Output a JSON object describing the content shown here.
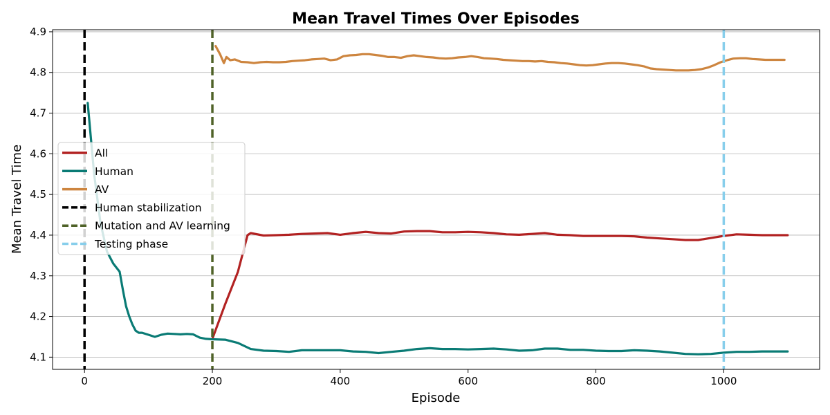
{
  "chart_data": {
    "type": "line",
    "title": "Mean Travel Times Over Episodes",
    "xlabel": "Episode",
    "ylabel": "Mean Travel Time",
    "xlim": [
      -50,
      1150
    ],
    "ylim": [
      4.07,
      4.905
    ],
    "xticks": [
      0,
      200,
      400,
      600,
      800,
      1000
    ],
    "yticks": [
      4.1,
      4.2,
      4.3,
      4.4,
      4.5,
      4.6,
      4.7,
      4.8,
      4.9
    ],
    "grid": "horizontal",
    "legend_position": "center-left",
    "series": [
      {
        "name": "All",
        "color": "#b22222",
        "x": [
          200,
          220,
          240,
          255,
          260,
          280,
          300,
          320,
          340,
          360,
          380,
          400,
          420,
          440,
          460,
          480,
          500,
          520,
          540,
          560,
          580,
          600,
          620,
          640,
          660,
          680,
          700,
          720,
          740,
          760,
          780,
          800,
          820,
          840,
          860,
          880,
          900,
          920,
          940,
          960,
          980,
          1000,
          1020,
          1040,
          1060,
          1080,
          1100
        ],
        "values": [
          4.145,
          4.23,
          4.31,
          4.4,
          4.405,
          4.399,
          4.4,
          4.401,
          4.403,
          4.404,
          4.405,
          4.401,
          4.405,
          4.408,
          4.405,
          4.404,
          4.409,
          4.41,
          4.41,
          4.407,
          4.407,
          4.408,
          4.407,
          4.405,
          4.402,
          4.401,
          4.403,
          4.405,
          4.401,
          4.4,
          4.398,
          4.398,
          4.398,
          4.398,
          4.397,
          4.394,
          4.392,
          4.39,
          4.388,
          4.388,
          4.393,
          4.398,
          4.402,
          4.401,
          4.4,
          4.4,
          4.4
        ]
      },
      {
        "name": "Human",
        "color": "#0a7b75",
        "x": [
          5,
          15,
          25,
          35,
          45,
          55,
          60,
          65,
          70,
          75,
          80,
          85,
          90,
          100,
          110,
          120,
          130,
          140,
          150,
          160,
          170,
          180,
          190,
          200,
          220,
          240,
          260,
          280,
          300,
          320,
          340,
          360,
          380,
          400,
          420,
          440,
          460,
          480,
          500,
          520,
          540,
          560,
          580,
          600,
          620,
          640,
          660,
          680,
          700,
          720,
          740,
          760,
          780,
          800,
          820,
          840,
          860,
          880,
          900,
          920,
          940,
          960,
          980,
          1000,
          1020,
          1040,
          1060,
          1080,
          1100
        ],
        "values": [
          4.725,
          4.55,
          4.43,
          4.36,
          4.33,
          4.31,
          4.265,
          4.225,
          4.2,
          4.18,
          4.165,
          4.16,
          4.16,
          4.155,
          4.15,
          4.155,
          4.158,
          4.157,
          4.156,
          4.157,
          4.156,
          4.148,
          4.145,
          4.144,
          4.143,
          4.135,
          4.12,
          4.116,
          4.115,
          4.113,
          4.117,
          4.117,
          4.117,
          4.117,
          4.114,
          4.113,
          4.11,
          4.113,
          4.116,
          4.12,
          4.122,
          4.12,
          4.12,
          4.119,
          4.12,
          4.121,
          4.119,
          4.116,
          4.117,
          4.121,
          4.121,
          4.118,
          4.118,
          4.116,
          4.115,
          4.115,
          4.117,
          4.116,
          4.114,
          4.111,
          4.108,
          4.107,
          4.108,
          4.111,
          4.113,
          4.113,
          4.114,
          4.114,
          4.114
        ]
      },
      {
        "name": "AV",
        "color": "#cd853f",
        "x": [
          205,
          212,
          218,
          222,
          228,
          235,
          245,
          255,
          265,
          275,
          285,
          295,
          305,
          315,
          325,
          335,
          345,
          355,
          365,
          375,
          385,
          395,
          405,
          415,
          425,
          435,
          445,
          455,
          465,
          475,
          485,
          495,
          505,
          515,
          525,
          535,
          545,
          555,
          565,
          575,
          585,
          595,
          605,
          615,
          625,
          635,
          645,
          655,
          665,
          675,
          685,
          695,
          705,
          715,
          725,
          735,
          745,
          755,
          765,
          775,
          785,
          795,
          805,
          815,
          825,
          835,
          845,
          855,
          865,
          875,
          885,
          895,
          905,
          915,
          925,
          935,
          945,
          955,
          965,
          975,
          985,
          995,
          1005,
          1015,
          1025,
          1035,
          1045,
          1055,
          1065,
          1075,
          1085,
          1095
        ],
        "values": [
          4.865,
          4.845,
          4.823,
          4.838,
          4.83,
          4.832,
          4.826,
          4.825,
          4.823,
          4.825,
          4.826,
          4.825,
          4.825,
          4.826,
          4.828,
          4.829,
          4.83,
          4.832,
          4.833,
          4.834,
          4.83,
          4.832,
          4.84,
          4.842,
          4.843,
          4.845,
          4.845,
          4.843,
          4.841,
          4.838,
          4.838,
          4.836,
          4.84,
          4.842,
          4.84,
          4.838,
          4.837,
          4.835,
          4.834,
          4.835,
          4.837,
          4.838,
          4.84,
          4.838,
          4.835,
          4.834,
          4.833,
          4.831,
          4.83,
          4.829,
          4.828,
          4.828,
          4.827,
          4.828,
          4.826,
          4.825,
          4.823,
          4.822,
          4.82,
          4.818,
          4.817,
          4.818,
          4.82,
          4.822,
          4.823,
          4.823,
          4.822,
          4.82,
          4.818,
          4.815,
          4.81,
          4.808,
          4.807,
          4.806,
          4.805,
          4.805,
          4.805,
          4.806,
          4.808,
          4.812,
          4.818,
          4.825,
          4.83,
          4.834,
          4.835,
          4.835,
          4.833,
          4.832,
          4.831,
          4.831,
          4.831,
          4.831
        ]
      }
    ],
    "vlines": [
      {
        "name": "Human stabilization",
        "x": 0,
        "color": "#000000"
      },
      {
        "name": "Mutation and AV learning",
        "x": 200,
        "color": "#4f6228"
      },
      {
        "name": "Testing phase",
        "x": 1000,
        "color": "#87ceeb"
      }
    ]
  }
}
